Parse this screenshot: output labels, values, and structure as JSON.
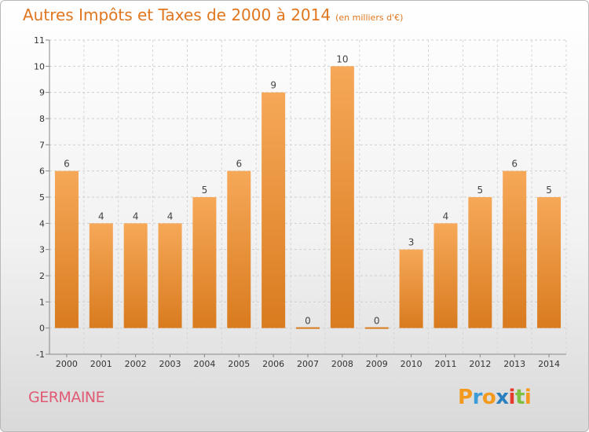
{
  "title": "Autres Impôts et Taxes de 2000 à 2014",
  "unit": "(en milliers d'€)",
  "commune": "GERMAINE",
  "logo": "Proxiti",
  "colors": {
    "bar_top": "#f6a858",
    "bar_bottom": "#d97b1f",
    "title": "#e0761e",
    "commune": "#e05a74"
  },
  "chart_data": {
    "type": "bar",
    "categories": [
      "2000",
      "2001",
      "2002",
      "2003",
      "2004",
      "2005",
      "2006",
      "2007",
      "2008",
      "2009",
      "2010",
      "2011",
      "2012",
      "2013",
      "2014"
    ],
    "values": [
      6,
      4,
      4,
      4,
      5,
      6,
      9,
      0,
      10,
      0,
      3,
      4,
      5,
      6,
      5
    ],
    "ylim": [
      -1,
      11
    ],
    "yticks": [
      "-1",
      "0",
      "1",
      "2",
      "3",
      "4",
      "5",
      "6",
      "7",
      "8",
      "9",
      "10",
      "11"
    ],
    "grid": true
  }
}
